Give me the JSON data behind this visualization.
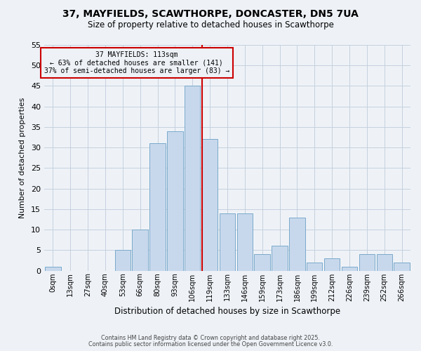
{
  "title_line1": "37, MAYFIELDS, SCAWTHORPE, DONCASTER, DN5 7UA",
  "title_line2": "Size of property relative to detached houses in Scawthorpe",
  "xlabel": "Distribution of detached houses by size in Scawthorpe",
  "ylabel": "Number of detached properties",
  "bin_labels": [
    "0sqm",
    "13sqm",
    "27sqm",
    "40sqm",
    "53sqm",
    "66sqm",
    "80sqm",
    "93sqm",
    "106sqm",
    "119sqm",
    "133sqm",
    "146sqm",
    "159sqm",
    "173sqm",
    "186sqm",
    "199sqm",
    "212sqm",
    "226sqm",
    "239sqm",
    "252sqm",
    "266sqm"
  ],
  "bar_heights": [
    1,
    0,
    0,
    0,
    5,
    10,
    31,
    34,
    45,
    32,
    14,
    14,
    4,
    6,
    13,
    2,
    3,
    1,
    4,
    4,
    2
  ],
  "bar_color": "#c8d8ec",
  "bar_edgecolor": "#7aaacb",
  "grid_color": "#c5d0de",
  "vline_color": "#cc0000",
  "annotation_title": "37 MAYFIELDS: 113sqm",
  "annotation_line1": "← 63% of detached houses are smaller (141)",
  "annotation_line2": "37% of semi-detached houses are larger (83) →",
  "annotation_box_edgecolor": "#cc0000",
  "footnote1": "Contains HM Land Registry data © Crown copyright and database right 2025.",
  "footnote2": "Contains public sector information licensed under the Open Government Licence v3.0.",
  "ylim": [
    0,
    55
  ],
  "yticks": [
    0,
    5,
    10,
    15,
    20,
    25,
    30,
    35,
    40,
    45,
    50,
    55
  ],
  "bg_color": "#eef2f7"
}
